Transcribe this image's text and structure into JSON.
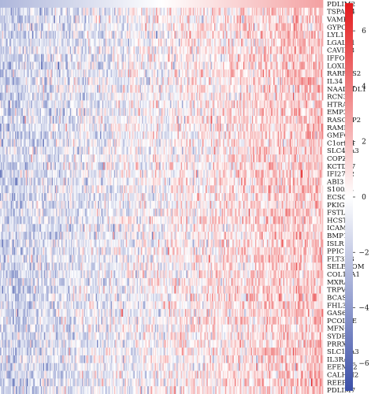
{
  "chart_data": {
    "type": "heatmap",
    "rows": [
      "PDLIM2",
      "TSPAN4",
      "VAMP5",
      "GYPC",
      "LYL1",
      "LGALS1",
      "CAVIN3",
      "IFFO1",
      "LOXL1",
      "RARRES2",
      "IL34",
      "NAALADL1",
      "RCN3",
      "HTRA1",
      "EMP3",
      "RASGRP2",
      "RAMP2",
      "GMFG",
      "C1orf54",
      "SLC43A3",
      "COPZ2",
      "KCTD17",
      "IFI27L2",
      "ABI3",
      "S100A4",
      "ECSCR",
      "PKIG",
      "FSTL3",
      "HCST",
      "ICAM2",
      "BMP1",
      "ISLR",
      "PPIC",
      "FLT3LG",
      "SELENOM",
      "COL16A1",
      "MXRA8",
      "TRPV2",
      "BCAS4",
      "FHL3",
      "GAS6",
      "PCOLCE",
      "MFNG",
      "SYDE1",
      "PRRX2",
      "SLC15A3",
      "IL3RA",
      "EFEMP2",
      "CALHM2",
      "REEP2",
      "PDLIM7"
    ],
    "columns": 300,
    "value_range": [
      -7,
      7
    ],
    "colorbar": {
      "ticks": [
        6,
        4,
        2,
        0,
        -2,
        -4,
        -6
      ],
      "tick_labels": [
        "6",
        "4",
        "2",
        "0",
        "−2",
        "−4",
        "−6"
      ],
      "colors": {
        "low": "#3b4fa8",
        "mid": "#ffffff",
        "high": "#e31a1c"
      }
    },
    "trend": "columns ordered from low (blue, left) to high (red, right); top row shows a smooth gradient"
  }
}
